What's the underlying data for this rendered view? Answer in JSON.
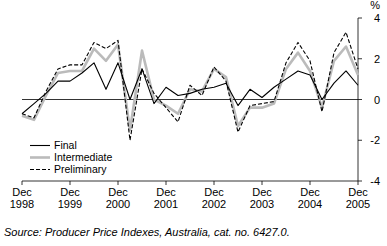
{
  "chart_data": {
    "type": "line",
    "y_label": "%",
    "source": "Source: Producer Price Indexes, Australia, cat. no. 6427.0.",
    "categories": [
      "Dec 1998",
      null,
      null,
      null,
      "Dec 1999",
      null,
      null,
      null,
      "Dec 2000",
      null,
      null,
      null,
      "Dec 2001",
      null,
      null,
      null,
      "Dec 2002",
      null,
      null,
      null,
      "Dec 2003",
      null,
      null,
      null,
      "Dec 2004",
      null,
      null,
      null,
      "Dec 2005"
    ],
    "series": [
      {
        "name": "Final",
        "color": "#000000",
        "line_style": "solid",
        "values": [
          -0.7,
          -0.2,
          0.3,
          0.9,
          0.9,
          1.3,
          1.8,
          0.5,
          1.8,
          0.0,
          1.5,
          -0.2,
          0.6,
          0.2,
          0.3,
          0.5,
          0.6,
          0.8,
          -0.3,
          0.5,
          0.1,
          0.6,
          1.0,
          1.4,
          1.2,
          0.0,
          0.8,
          1.4,
          0.7
        ]
      },
      {
        "name": "Intermediate",
        "color": "#bbbbbb",
        "line_style": "solid",
        "values": [
          -0.8,
          -1.0,
          0.2,
          1.3,
          1.4,
          1.4,
          2.5,
          1.9,
          2.7,
          -1.5,
          2.4,
          0.0,
          -0.3,
          -0.7,
          0.5,
          0.4,
          1.5,
          1.1,
          -1.3,
          -0.4,
          -0.4,
          -0.2,
          1.5,
          2.3,
          1.4,
          -0.4,
          1.9,
          2.6,
          1.2
        ]
      },
      {
        "name": "Preliminary",
        "color": "#000000",
        "line_style": "dashed",
        "values": [
          -0.7,
          -0.9,
          0.4,
          1.5,
          1.7,
          1.7,
          2.8,
          2.5,
          2.9,
          -2.0,
          1.5,
          0.3,
          -0.4,
          -1.1,
          0.7,
          0.2,
          1.6,
          0.9,
          -1.6,
          -0.3,
          -0.2,
          -0.1,
          1.8,
          2.8,
          1.9,
          -0.6,
          2.3,
          3.3,
          1.5
        ]
      }
    ],
    "ylim": [
      -4,
      4
    ],
    "yticks": [
      -4,
      -2,
      0,
      2,
      4
    ],
    "grid": false,
    "legend": "lower left"
  }
}
